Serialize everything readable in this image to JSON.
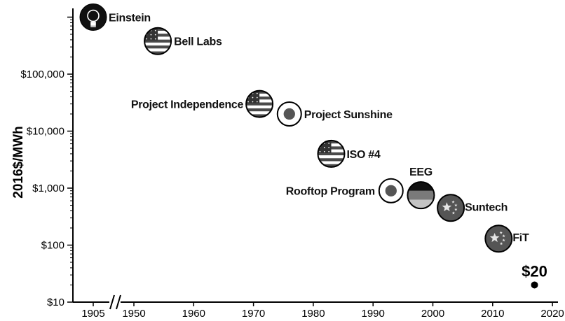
{
  "chart_data": {
    "type": "scatter",
    "title": "",
    "xlabel": "",
    "ylabel": "2016$/MWh",
    "y_scale": "log",
    "ylim": [
      10,
      2000000
    ],
    "x_axis_break": "between 1905 and 1950",
    "xticks": [
      "1905",
      "1950",
      "1960",
      "1970",
      "1980",
      "1990",
      "2000",
      "2010",
      "2020"
    ],
    "yticks": [
      "$10",
      "$100",
      "$1,000",
      "$10,000",
      "$100,000"
    ],
    "grid": false,
    "points": [
      {
        "label": "Einstein",
        "x": 1905,
        "y": 1000000,
        "icon": "lightbulb-icon"
      },
      {
        "label": "Bell Labs",
        "x": 1954,
        "y": 380000,
        "icon": "us-flag-icon"
      },
      {
        "label": "Project Independence",
        "x": 1971,
        "y": 30000,
        "icon": "us-flag-icon"
      },
      {
        "label": "Project Sunshine",
        "x": 1976,
        "y": 20000,
        "icon": "japan-sun-icon"
      },
      {
        "label": "ISO #4",
        "x": 1983,
        "y": 4000,
        "icon": "us-flag-icon"
      },
      {
        "label": "Rooftop Program",
        "x": 1993,
        "y": 900,
        "icon": "japan-sun-icon"
      },
      {
        "label": "EEG",
        "x": 1998,
        "y": 750,
        "icon": "germany-flag-icon"
      },
      {
        "label": "Suntech",
        "x": 2003,
        "y": 450,
        "icon": "china-flag-icon"
      },
      {
        "label": "FiT",
        "x": 2011,
        "y": 130,
        "icon": "china-flag-icon"
      },
      {
        "label": "$20",
        "x": 2017,
        "y": 20,
        "icon": "dot"
      }
    ],
    "colors": {
      "axis": "#000000",
      "flag_dark": "#4a4a4a",
      "flag_light": "#ffffff",
      "china": "#555555"
    }
  }
}
